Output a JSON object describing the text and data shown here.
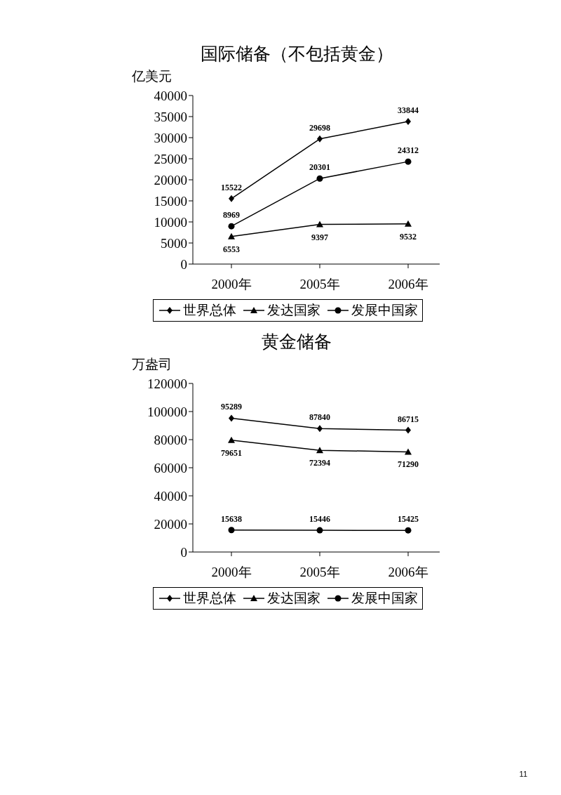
{
  "chart_data": [
    {
      "type": "line",
      "title": "国际储备（不包括黄金）",
      "ylabel": "亿美元",
      "categories": [
        "2000年",
        "2005年",
        "2006年"
      ],
      "series": [
        {
          "name": "世界总体",
          "color": "#000000",
          "marker": "diamond",
          "values": [
            15522,
            29698,
            33844
          ]
        },
        {
          "name": "发达国家",
          "color": "#000000",
          "marker": "triangle",
          "values": [
            6553,
            9397,
            9532
          ]
        },
        {
          "name": "发展中国家",
          "color": "#000000",
          "marker": "circle",
          "values": [
            8969,
            20301,
            24312
          ]
        }
      ],
      "ylim": [
        0,
        40000
      ],
      "yticks": [
        0,
        5000,
        10000,
        15000,
        20000,
        25000,
        30000,
        35000,
        40000
      ],
      "data_labels": true,
      "legend": "bottom",
      "grid": false
    },
    {
      "type": "line",
      "title": "黄金储备",
      "ylabel": "万盎司",
      "categories": [
        "2000年",
        "2005年",
        "2006年"
      ],
      "series": [
        {
          "name": "世界总体",
          "color": "#000000",
          "marker": "diamond",
          "values": [
            95289,
            87840,
            86715
          ]
        },
        {
          "name": "发达国家",
          "color": "#000000",
          "marker": "triangle",
          "values": [
            79651,
            72394,
            71290
          ]
        },
        {
          "name": "发展中国家",
          "color": "#000000",
          "marker": "circle",
          "values": [
            15638,
            15446,
            15425
          ]
        }
      ],
      "ylim": [
        0,
        120000
      ],
      "yticks": [
        0,
        20000,
        40000,
        60000,
        80000,
        100000,
        120000
      ],
      "data_labels": true,
      "legend": "bottom",
      "grid": false,
      "annotations": [
        "11"
      ]
    }
  ]
}
